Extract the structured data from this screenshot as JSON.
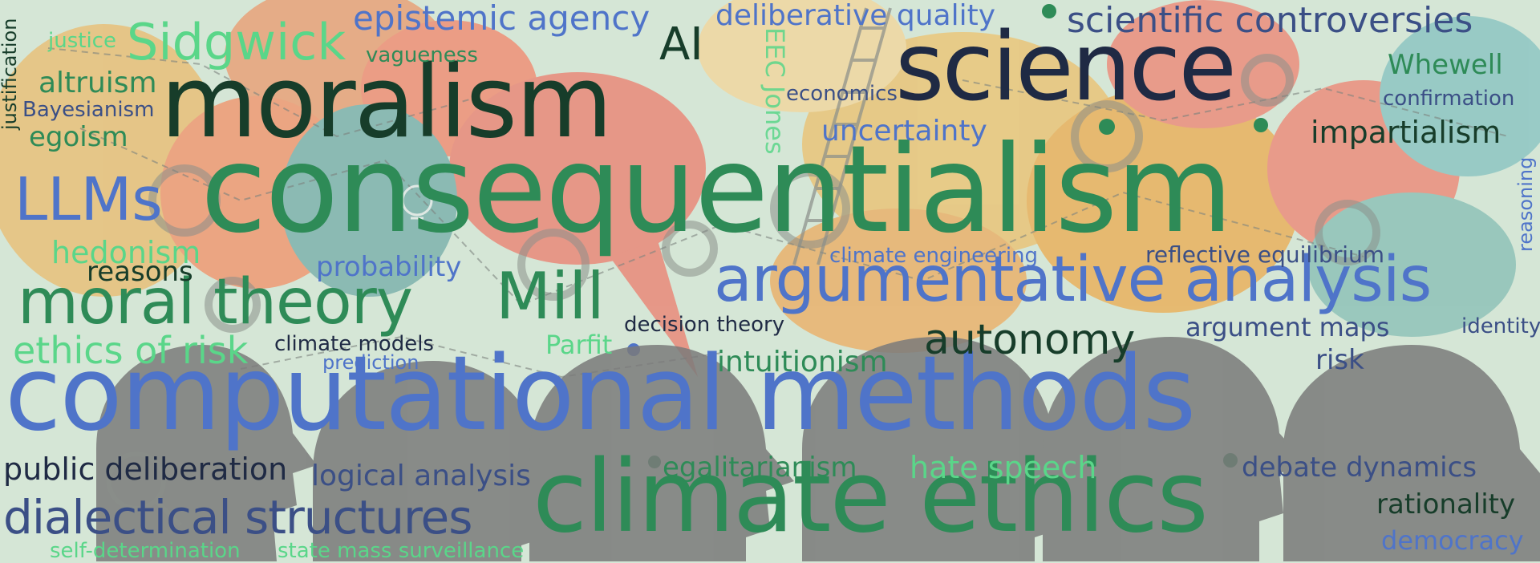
{
  "colors": {
    "background": "#d5e6d6",
    "dark_green": "#173d2a",
    "green": "#2e8b57",
    "light_green": "#5ad689",
    "blue": "#4f74c9",
    "navy": "#1f2a44",
    "slate_blue": "#3b4f86"
  },
  "background_illustration": {
    "elements": [
      "speech-bubble",
      "gear-icon",
      "lightbulb-icon",
      "ladder-icon",
      "network-node",
      "human-head-silhouette",
      "magnifier-icon"
    ]
  },
  "words": [
    {
      "id": "consequentialism",
      "text": "consequentialism",
      "color": "#2e8b57"
    },
    {
      "id": "computational-methods",
      "text": "computational methods",
      "color": "#4f74c9"
    },
    {
      "id": "climate-ethics",
      "text": "climate ethics",
      "color": "#2e8b57"
    },
    {
      "id": "moralism",
      "text": "moralism",
      "color": "#173d2a"
    },
    {
      "id": "science",
      "text": "science",
      "color": "#1f2a44"
    },
    {
      "id": "argumentative-analysis",
      "text": "argumentative analysis",
      "color": "#4f74c9"
    },
    {
      "id": "moral-theory",
      "text": "moral theory",
      "color": "#2e8b57"
    },
    {
      "id": "dialectical-structures",
      "text": "dialectical structures",
      "color": "#3b4f86"
    },
    {
      "id": "mill",
      "text": "Mill",
      "color": "#2e8b57"
    },
    {
      "id": "autonomy",
      "text": "autonomy",
      "color": "#173d2a"
    },
    {
      "id": "scientific-controversies",
      "text": "scientific controversies",
      "color": "#3b4f86"
    },
    {
      "id": "epistemic-agency",
      "text": "epistemic agency",
      "color": "#4f74c9"
    },
    {
      "id": "sidgwick",
      "text": "Sidgwick",
      "color": "#5ad689"
    },
    {
      "id": "llms",
      "text": "LLMs",
      "color": "#4f74c9"
    },
    {
      "id": "ai",
      "text": "AI",
      "color": "#173d2a"
    },
    {
      "id": "ethics-of-risk",
      "text": "ethics of risk",
      "color": "#5ad689"
    },
    {
      "id": "deliberative-quality",
      "text": "deliberative quality",
      "color": "#4f74c9"
    },
    {
      "id": "impartialism",
      "text": "impartialism",
      "color": "#173d2a"
    },
    {
      "id": "public-deliberation",
      "text": "public deliberation",
      "color": "#1f2a44"
    },
    {
      "id": "logical-analysis",
      "text": "logical analysis",
      "color": "#3b4f86"
    },
    {
      "id": "egalitarianism",
      "text": "egalitarianism",
      "color": "#2e8b57"
    },
    {
      "id": "hate-speech",
      "text": "hate speech",
      "color": "#5ad689"
    },
    {
      "id": "debate-dynamics",
      "text": "debate dynamics",
      "color": "#3b4f86"
    },
    {
      "id": "intuitionism",
      "text": "intuitionism",
      "color": "#2e8b57"
    },
    {
      "id": "argument-maps",
      "text": "argument maps",
      "color": "#3b4f86"
    },
    {
      "id": "hedonism",
      "text": "hedonism",
      "color": "#5ad689"
    },
    {
      "id": "altruism",
      "text": "altruism",
      "color": "#2e8b57"
    },
    {
      "id": "egoism",
      "text": "egoism",
      "color": "#2e8b57"
    },
    {
      "id": "uncertainty",
      "text": "uncertainty",
      "color": "#4f74c9"
    },
    {
      "id": "whewell",
      "text": "Whewell",
      "color": "#2e8b57"
    },
    {
      "id": "rationality",
      "text": "rationality",
      "color": "#173d2a"
    },
    {
      "id": "democracy",
      "text": "democracy",
      "color": "#4f74c9"
    },
    {
      "id": "reasons",
      "text": "reasons",
      "color": "#173d2a"
    },
    {
      "id": "probability",
      "text": "probability",
      "color": "#4f74c9"
    },
    {
      "id": "parfit",
      "text": "Parfit",
      "color": "#5ad689"
    },
    {
      "id": "risk",
      "text": "risk",
      "color": "#3b4f86"
    },
    {
      "id": "reflective-equilibrium",
      "text": "reflective equilibrium",
      "color": "#3b4f86"
    },
    {
      "id": "decision-theory",
      "text": "decision theory",
      "color": "#1f2a44"
    },
    {
      "id": "climate-models",
      "text": "climate models",
      "color": "#1f2a44"
    },
    {
      "id": "climate-engineering",
      "text": "climate engineering",
      "color": "#4f74c9"
    },
    {
      "id": "prediction",
      "text": "prediction",
      "color": "#4f74c9"
    },
    {
      "id": "economics",
      "text": "economics",
      "color": "#3b4f86"
    },
    {
      "id": "vagueness",
      "text": "vagueness",
      "color": "#2e8b57"
    },
    {
      "id": "justice",
      "text": "justice",
      "color": "#5ad689"
    },
    {
      "id": "bayesianism",
      "text": "Bayesianism",
      "color": "#3b4f86"
    },
    {
      "id": "confirmation",
      "text": "confirmation",
      "color": "#3b4f86"
    },
    {
      "id": "identity",
      "text": "identity",
      "color": "#3b4f86"
    },
    {
      "id": "self-determination",
      "text": "self-determination",
      "color": "#5ad689"
    },
    {
      "id": "state-mass-surveillance",
      "text": "state mass surveillance",
      "color": "#5ad689"
    },
    {
      "id": "justification",
      "text": "justification",
      "color": "#173d2a"
    },
    {
      "id": "reasoning",
      "text": "reasoning",
      "color": "#4f74c9"
    },
    {
      "id": "ebc-jones",
      "text": "EEC Jones",
      "color": "#5ad689"
    }
  ]
}
